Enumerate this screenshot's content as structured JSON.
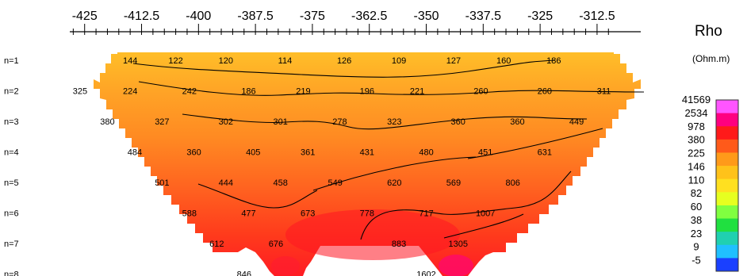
{
  "chart_data": {
    "type": "heatmap",
    "title": "Rho",
    "unit": "(Ohm.m)",
    "x_ticks": [
      -425,
      -412.5,
      -400,
      -387.5,
      -375,
      -362.5,
      -350,
      -337.5,
      -325,
      -312.5
    ],
    "x_tick_labels": [
      "-425",
      "-412.5",
      "-400",
      "-387.5",
      "-375",
      "-362.5",
      "-350",
      "-337.5",
      "-325",
      "-312.5"
    ],
    "xlim": [
      -430,
      -310
    ],
    "levels": [
      "n=1",
      "n=2",
      "n=3",
      "n=4",
      "n=5",
      "n=6",
      "n=7",
      "n=8"
    ],
    "colorbar": {
      "labels": [
        "41569",
        "2534",
        "978",
        "380",
        "225",
        "146",
        "110",
        "82",
        "60",
        "38",
        "23",
        "9",
        "-5"
      ],
      "colors": [
        "#ff55ff",
        "#ff0080",
        "#ff1a1a",
        "#ff5a1a",
        "#ff9a1a",
        "#ffc21a",
        "#ffe020",
        "#e6ff20",
        "#80ff40",
        "#20e040",
        "#20d0b0",
        "#20c0ff",
        "#1a40ff"
      ]
    },
    "points": [
      {
        "x": -415,
        "n": 1,
        "value": "144"
      },
      {
        "x": -405,
        "n": 1,
        "value": "122"
      },
      {
        "x": -394,
        "n": 1,
        "value": "120"
      },
      {
        "x": -381,
        "n": 1,
        "value": "114"
      },
      {
        "x": -368,
        "n": 1,
        "value": "126"
      },
      {
        "x": -356,
        "n": 1,
        "value": "109"
      },
      {
        "x": -344,
        "n": 1,
        "value": "127"
      },
      {
        "x": -333,
        "n": 1,
        "value": "160"
      },
      {
        "x": -322,
        "n": 1,
        "value": "186"
      },
      {
        "x": -426,
        "n": 2,
        "value": "325"
      },
      {
        "x": -415,
        "n": 2,
        "value": "224"
      },
      {
        "x": -402,
        "n": 2,
        "value": "242"
      },
      {
        "x": -389,
        "n": 2,
        "value": "186"
      },
      {
        "x": -377,
        "n": 2,
        "value": "219"
      },
      {
        "x": -363,
        "n": 2,
        "value": "196"
      },
      {
        "x": -352,
        "n": 2,
        "value": "221"
      },
      {
        "x": -338,
        "n": 2,
        "value": "260"
      },
      {
        "x": -324,
        "n": 2,
        "value": "260"
      },
      {
        "x": -311,
        "n": 2,
        "value": "311"
      },
      {
        "x": -420,
        "n": 3,
        "value": "380"
      },
      {
        "x": -408,
        "n": 3,
        "value": "327"
      },
      {
        "x": -394,
        "n": 3,
        "value": "302"
      },
      {
        "x": -382,
        "n": 3,
        "value": "301"
      },
      {
        "x": -369,
        "n": 3,
        "value": "278"
      },
      {
        "x": -357,
        "n": 3,
        "value": "323"
      },
      {
        "x": -343,
        "n": 3,
        "value": "360"
      },
      {
        "x": -330,
        "n": 3,
        "value": "360"
      },
      {
        "x": -317,
        "n": 3,
        "value": "449"
      },
      {
        "x": -414,
        "n": 4,
        "value": "484"
      },
      {
        "x": -401,
        "n": 4,
        "value": "360"
      },
      {
        "x": -388,
        "n": 4,
        "value": "405"
      },
      {
        "x": -376,
        "n": 4,
        "value": "361"
      },
      {
        "x": -363,
        "n": 4,
        "value": "431"
      },
      {
        "x": -350,
        "n": 4,
        "value": "480"
      },
      {
        "x": -337,
        "n": 4,
        "value": "451"
      },
      {
        "x": -324,
        "n": 4,
        "value": "631"
      },
      {
        "x": -408,
        "n": 5,
        "value": "501"
      },
      {
        "x": -394,
        "n": 5,
        "value": "444"
      },
      {
        "x": -382,
        "n": 5,
        "value": "458"
      },
      {
        "x": -370,
        "n": 5,
        "value": "549"
      },
      {
        "x": -357,
        "n": 5,
        "value": "620"
      },
      {
        "x": -344,
        "n": 5,
        "value": "569"
      },
      {
        "x": -331,
        "n": 5,
        "value": "806"
      },
      {
        "x": -402,
        "n": 6,
        "value": "588"
      },
      {
        "x": -389,
        "n": 6,
        "value": "477"
      },
      {
        "x": -376,
        "n": 6,
        "value": "673"
      },
      {
        "x": -363,
        "n": 6,
        "value": "778"
      },
      {
        "x": -350,
        "n": 6,
        "value": "717"
      },
      {
        "x": -337,
        "n": 6,
        "value": "1007"
      },
      {
        "x": -396,
        "n": 7,
        "value": "612"
      },
      {
        "x": -383,
        "n": 7,
        "value": "676"
      },
      {
        "x": -356,
        "n": 7,
        "value": "883"
      },
      {
        "x": -343,
        "n": 7,
        "value": "1305"
      },
      {
        "x": -390,
        "n": 8,
        "value": "846"
      },
      {
        "x": -350,
        "n": 8,
        "value": "1602"
      }
    ]
  }
}
